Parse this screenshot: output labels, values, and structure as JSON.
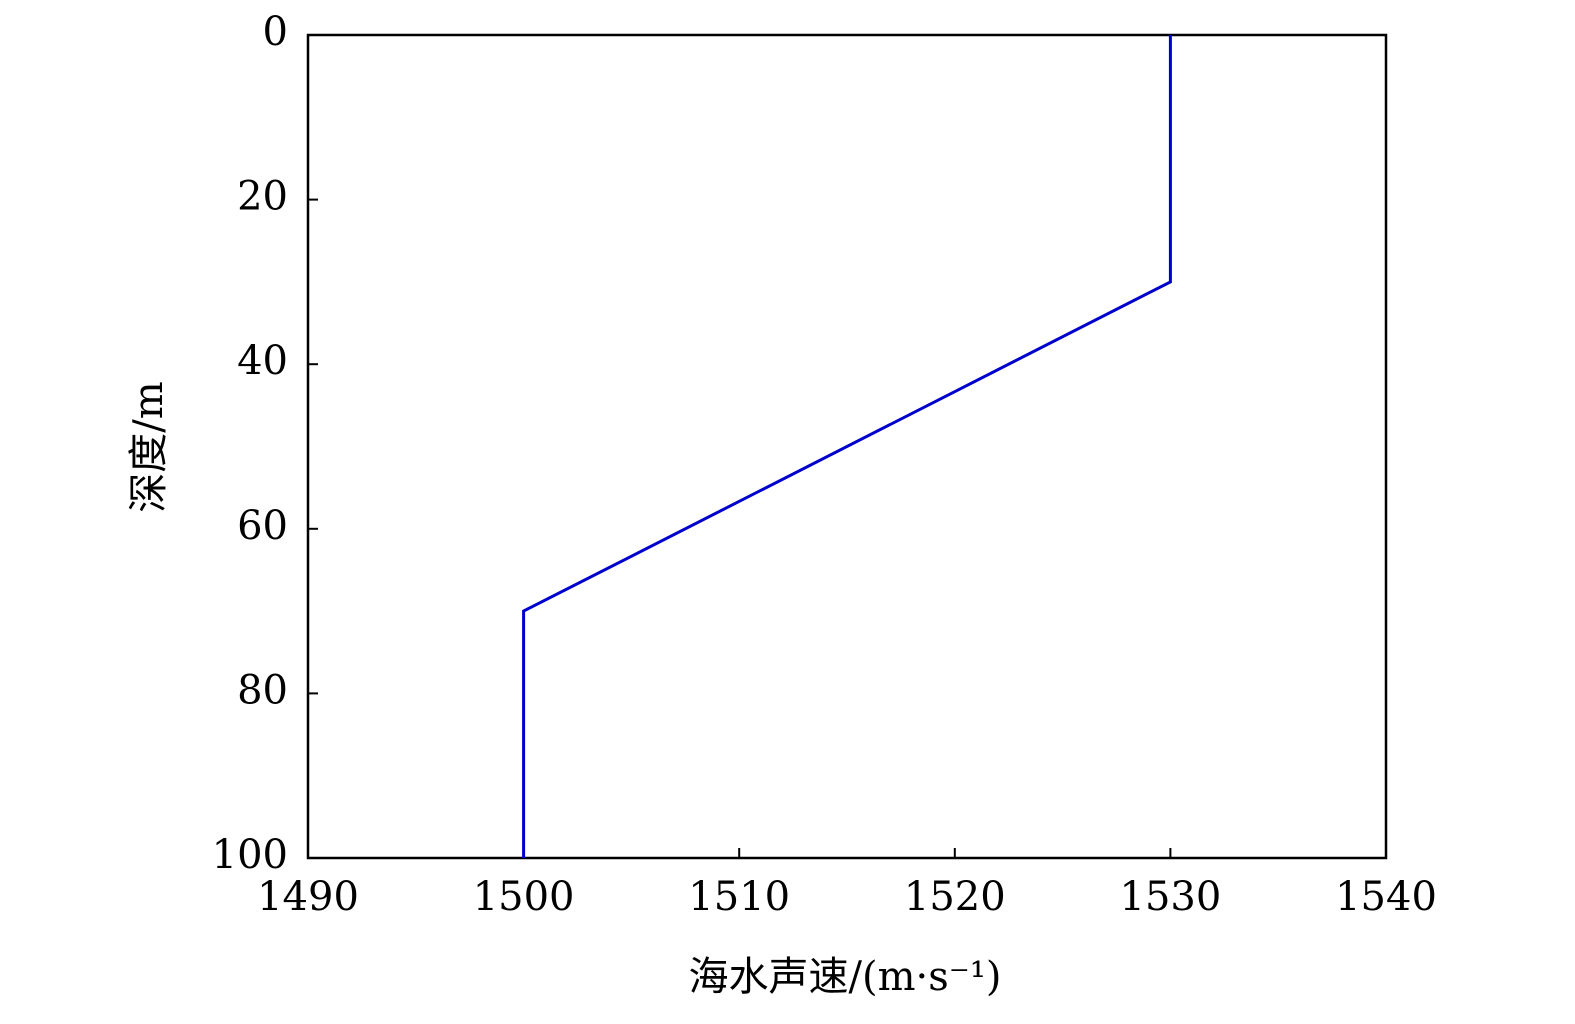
{
  "chart_data": {
    "type": "line",
    "x_label": "海水声速/(m·s⁻¹)",
    "y_label": "深度/m",
    "x": [
      1530,
      1530,
      1500,
      1500
    ],
    "series": [
      {
        "color": "#0000cc",
        "values": [
          0,
          30,
          70,
          100
        ]
      }
    ],
    "xlim": [
      1490,
      1540
    ],
    "xticks": [
      1490,
      1500,
      1510,
      1520,
      1530,
      1540
    ],
    "ylim": [
      0,
      100
    ],
    "yticks": [
      0,
      20,
      40,
      60,
      80,
      100
    ],
    "y_inverted": true,
    "grid": false
  }
}
